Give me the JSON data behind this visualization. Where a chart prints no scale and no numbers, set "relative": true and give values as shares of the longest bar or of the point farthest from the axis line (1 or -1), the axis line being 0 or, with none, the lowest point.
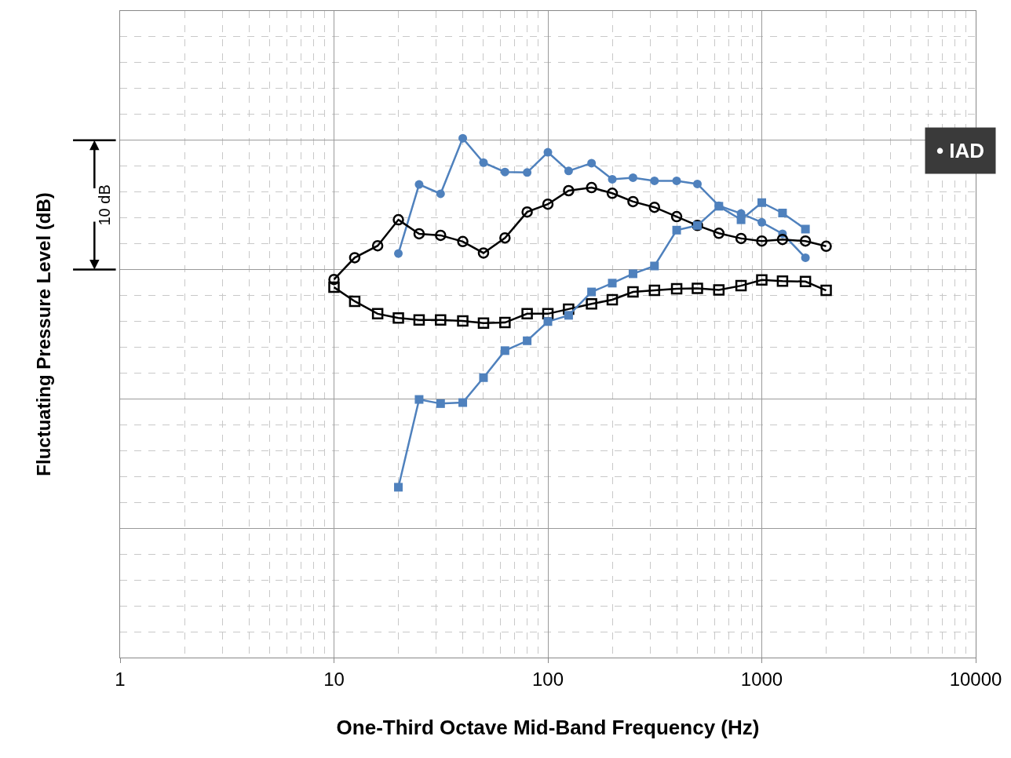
{
  "chart_data": {
    "type": "line",
    "xlabel": "One-Third Octave Mid-Band Frequency (Hz)",
    "ylabel": "Fluctuating Pressure Level (dB)",
    "relative": true,
    "log": "x",
    "grid": true,
    "xlim": [
      1,
      10000
    ],
    "xticks": [
      1,
      10,
      100,
      1000,
      10000
    ],
    "annotations": [
      "10 dB",
      "• IAD"
    ],
    "series": [
      {
        "color": "#4f81bd",
        "marker": "circle",
        "x": [
          20,
          25,
          31.5,
          40,
          50,
          63,
          80,
          100,
          125,
          160,
          200,
          250,
          315,
          400,
          500,
          630,
          800,
          1000,
          1250,
          1600
        ],
        "values": [
          0.778,
          0.911,
          0.893,
          1.0,
          0.953,
          0.935,
          0.934,
          0.973,
          0.937,
          0.952,
          0.921,
          0.924,
          0.918,
          0.918,
          0.912,
          0.87,
          0.855,
          0.838,
          0.816,
          0.77
        ]
      },
      {
        "color": "#000000",
        "marker": "circle-open",
        "x": [
          10,
          12.5,
          16,
          20,
          25,
          31.5,
          40,
          50,
          63,
          80,
          100,
          125,
          160,
          200,
          250,
          315,
          400,
          500,
          630,
          800,
          1000,
          1250,
          1600,
          2000
        ],
        "values": [
          0.728,
          0.77,
          0.793,
          0.843,
          0.816,
          0.813,
          0.801,
          0.779,
          0.808,
          0.858,
          0.873,
          0.899,
          0.905,
          0.894,
          0.878,
          0.867,
          0.849,
          0.832,
          0.817,
          0.807,
          0.802,
          0.805,
          0.802,
          0.792
        ]
      },
      {
        "color": "#000000",
        "marker": "square-open",
        "x": [
          10,
          12.5,
          16,
          20,
          25,
          31.5,
          40,
          50,
          63,
          80,
          100,
          125,
          160,
          200,
          250,
          315,
          400,
          500,
          630,
          800,
          1000,
          1250,
          1600,
          2000
        ],
        "values": [
          0.713,
          0.686,
          0.662,
          0.654,
          0.65,
          0.65,
          0.648,
          0.644,
          0.645,
          0.662,
          0.662,
          0.671,
          0.681,
          0.689,
          0.704,
          0.707,
          0.71,
          0.711,
          0.708,
          0.716,
          0.727,
          0.725,
          0.724,
          0.707
        ]
      },
      {
        "color": "#4f81bd",
        "marker": "square",
        "x": [
          20,
          25,
          31.5,
          40,
          50,
          63,
          80,
          100,
          125,
          160,
          200,
          250,
          315,
          400,
          500,
          630,
          800,
          1000,
          1250,
          1600
        ],
        "values": [
          0.328,
          0.497,
          0.489,
          0.491,
          0.539,
          0.591,
          0.61,
          0.647,
          0.659,
          0.704,
          0.721,
          0.739,
          0.754,
          0.823,
          0.832,
          0.869,
          0.843,
          0.876,
          0.856,
          0.825
        ]
      }
    ]
  }
}
